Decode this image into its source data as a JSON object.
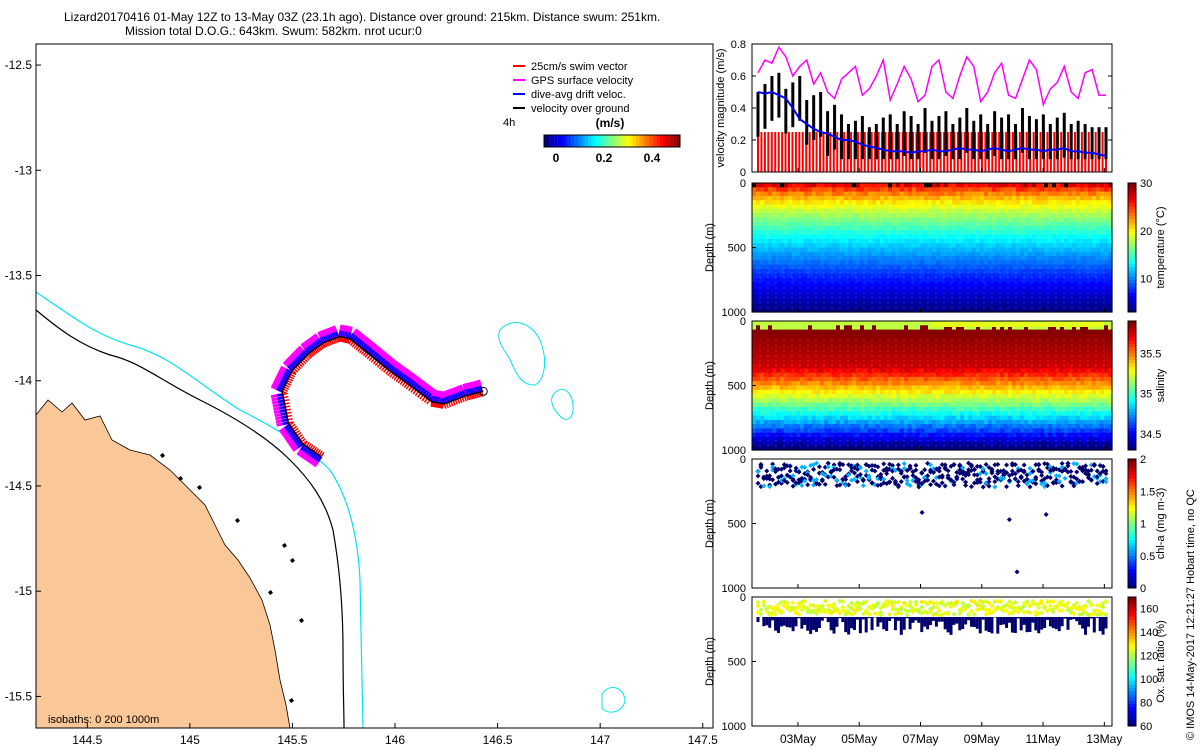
{
  "header": {
    "line1": "Lizard20170416 01-May 12Z to 13-May 03Z (23.1h ago). Distance over ground: 215km. Distance swum: 251km.",
    "line2": "Mission total D.O.G.: 643km. Swum: 582km. nrot ucur:0"
  },
  "side_note": "© IMOS 14-May-2017 12:21:27 Hobart time, no QC",
  "colors": {
    "land": "#fac898",
    "isobath_200": "#000000",
    "isobath_1000": "#00e5ee",
    "swim": "#ff0000",
    "gps": "#ff00ff",
    "drift": "#0000ff",
    "ground": "#000000"
  },
  "chart_data": [
    {
      "type": "scatter",
      "name": "map",
      "x_ticks": [
        "144.5",
        "145",
        "145.5",
        "146",
        "146.5",
        "147",
        "147.5"
      ],
      "y_ticks": [
        "-12.5",
        "-13",
        "-13.5",
        "-14",
        "-14.5",
        "-15",
        "-15.5"
      ],
      "xlim": [
        144.25,
        147.55
      ],
      "ylim": [
        -15.65,
        -12.4
      ],
      "legend": [
        "25cm/s swim vector",
        "GPS surface velocity",
        "dive-avg drift veloc.",
        "velocity over ground"
      ],
      "legend_label_4h": "4h",
      "colorbar_title": "(m/s)",
      "colorbar_ticks": [
        "0",
        "0.2",
        "0.4"
      ],
      "isobath_label": "isobaths: 0   200  1000m",
      "track": [
        [
          145.64,
          -14.36
        ],
        [
          145.55,
          -14.3
        ],
        [
          145.48,
          -14.2
        ],
        [
          145.45,
          -14.05
        ],
        [
          145.5,
          -13.95
        ],
        [
          145.58,
          -13.87
        ],
        [
          145.65,
          -13.82
        ],
        [
          145.73,
          -13.79
        ],
        [
          145.78,
          -13.8
        ],
        [
          145.87,
          -13.87
        ],
        [
          145.97,
          -13.95
        ],
        [
          146.07,
          -14.02
        ],
        [
          146.18,
          -14.1
        ],
        [
          146.24,
          -14.11
        ],
        [
          146.35,
          -14.07
        ],
        [
          146.43,
          -14.05
        ]
      ]
    },
    {
      "type": "line",
      "name": "velocity",
      "ylabel": "velocity magnitude (m/s)",
      "y_ticks": [
        "0",
        "0.2",
        "0.4",
        "0.6",
        "0.8"
      ],
      "ylim": [
        0,
        0.8
      ],
      "x_ticks": [
        "03May",
        "05May",
        "07May",
        "09May",
        "11May",
        "13May"
      ],
      "swim_speed": 0.25,
      "gps": [
        0.62,
        0.7,
        0.68,
        0.78,
        0.72,
        0.6,
        0.66,
        0.7,
        0.55,
        0.62,
        0.5,
        0.46,
        0.58,
        0.62,
        0.66,
        0.48,
        0.52,
        0.6,
        0.7,
        0.45,
        0.55,
        0.66,
        0.58,
        0.44,
        0.48,
        0.66,
        0.7,
        0.5,
        0.46,
        0.6,
        0.72,
        0.66,
        0.44,
        0.5,
        0.62,
        0.68,
        0.48,
        0.46,
        0.58,
        0.7,
        0.64,
        0.42,
        0.52,
        0.56,
        0.66,
        0.5,
        0.46,
        0.62,
        0.64,
        0.48,
        0.48
      ],
      "drift": [
        0.5,
        0.49,
        0.5,
        0.48,
        0.46,
        0.4,
        0.33,
        0.3,
        0.27,
        0.25,
        0.24,
        0.22,
        0.2,
        0.2,
        0.19,
        0.17,
        0.16,
        0.15,
        0.14,
        0.13,
        0.13,
        0.13,
        0.12,
        0.13,
        0.13,
        0.14,
        0.13,
        0.13,
        0.14,
        0.15,
        0.14,
        0.14,
        0.13,
        0.14,
        0.15,
        0.14,
        0.13,
        0.14,
        0.15,
        0.14,
        0.14,
        0.13,
        0.14,
        0.14,
        0.15,
        0.13,
        0.13,
        0.12,
        0.12,
        0.11,
        0.1
      ],
      "ground": [
        0.5,
        0.55,
        0.6,
        0.62,
        0.52,
        0.56,
        0.6,
        0.45,
        0.48,
        0.5,
        0.38,
        0.42,
        0.36,
        0.3,
        0.32,
        0.35,
        0.28,
        0.3,
        0.34,
        0.36,
        0.3,
        0.38,
        0.35,
        0.3,
        0.4,
        0.32,
        0.35,
        0.38,
        0.3,
        0.34,
        0.4,
        0.32,
        0.36,
        0.3,
        0.38,
        0.34,
        0.36,
        0.3,
        0.4,
        0.35,
        0.33,
        0.36,
        0.3,
        0.34,
        0.37,
        0.3,
        0.32,
        0.3,
        0.28,
        0.28,
        0.28
      ]
    },
    {
      "type": "heatmap",
      "name": "temperature",
      "ylabel": "Depth (m)",
      "y_ticks": [
        "0",
        "500",
        "1000"
      ],
      "cbar_label": "temperature (°C)",
      "cbar_ticks": [
        "10",
        "20",
        "30"
      ],
      "clim": [
        3,
        30
      ]
    },
    {
      "type": "heatmap",
      "name": "salinity",
      "ylabel": "Depth (m)",
      "y_ticks": [
        "0",
        "500",
        "1000"
      ],
      "cbar_label": "salinity",
      "cbar_ticks": [
        "34.5",
        "35",
        "35.5"
      ],
      "clim": [
        34.3,
        35.9
      ]
    },
    {
      "type": "scatter",
      "name": "chlorophyll",
      "ylabel": "Depth (m)",
      "y_ticks": [
        "0",
        "500",
        "1000"
      ],
      "cbar_label": "chl-a (mg m-3)",
      "cbar_ticks": [
        "0",
        "0.5",
        "1",
        "1.5",
        "2"
      ],
      "clim": [
        0,
        2
      ],
      "outliers": [
        [
          7.05,
          415
        ],
        [
          9.9,
          470
        ],
        [
          11.1,
          430
        ],
        [
          10.15,
          875
        ]
      ]
    },
    {
      "type": "scatter",
      "name": "oxygen",
      "ylabel": "Depth (m)",
      "y_ticks": [
        "0",
        "500",
        "1000"
      ],
      "cbar_label": "Ox. sat. ratio (%)",
      "cbar_ticks": [
        "60",
        "80",
        "100",
        "120",
        "140",
        "160"
      ],
      "clim": [
        60,
        170
      ]
    }
  ]
}
